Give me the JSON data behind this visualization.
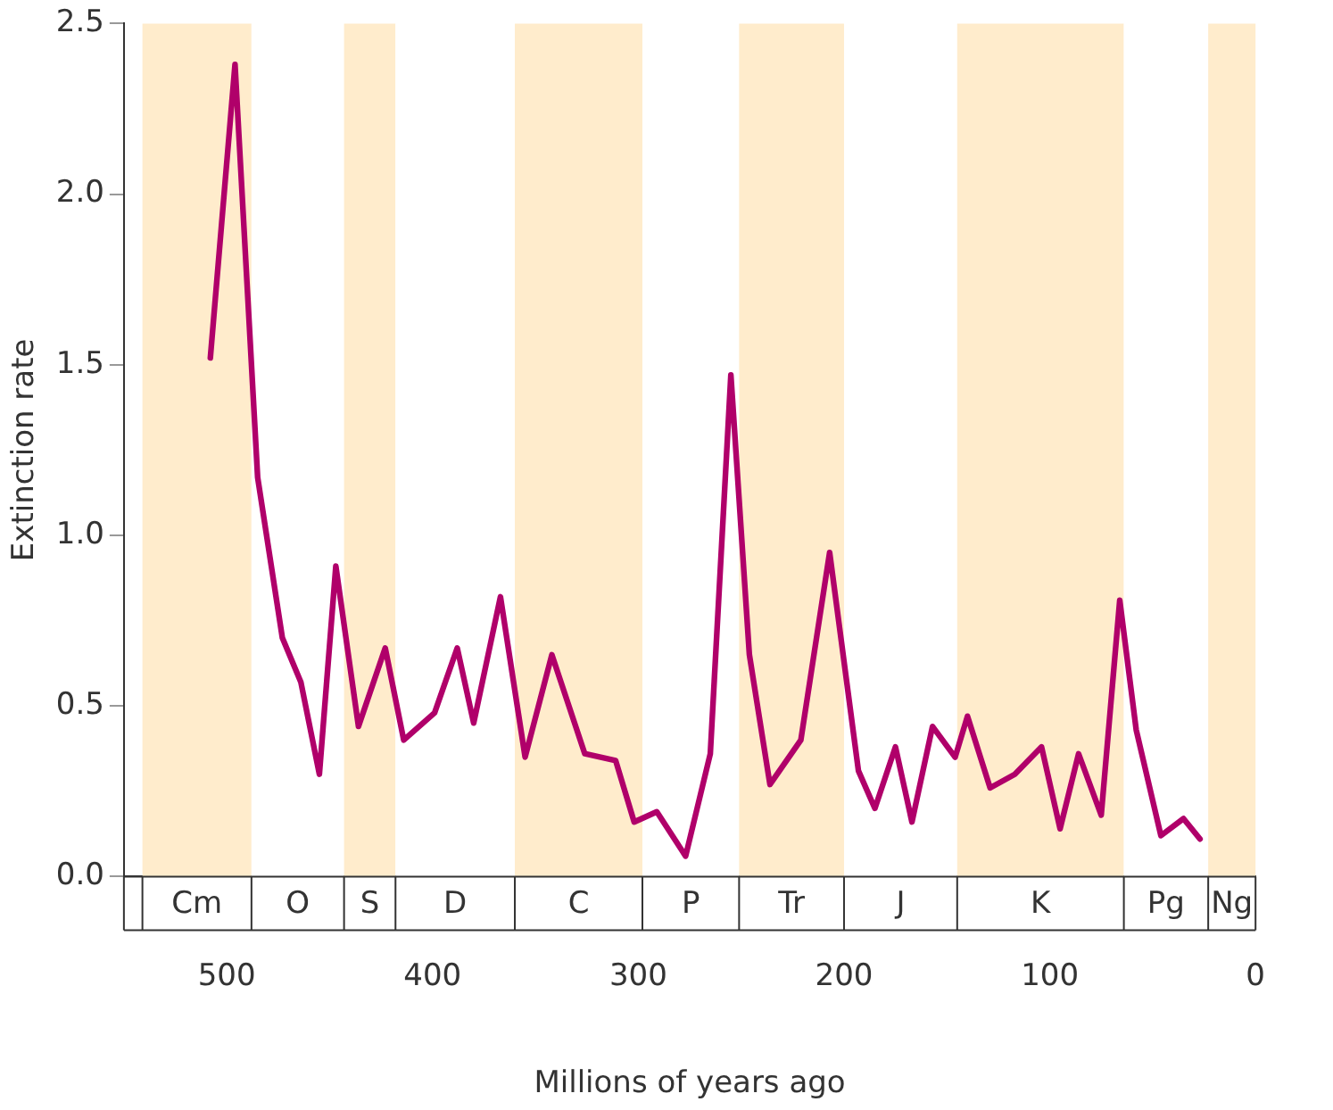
{
  "chart_data": {
    "type": "line",
    "xlabel": "Millions of years ago",
    "ylabel": "Extinction rate",
    "xlim": [
      550,
      0
    ],
    "xticks": [
      500,
      400,
      300,
      200,
      100,
      0
    ],
    "ylim": [
      0,
      2.5
    ],
    "yticks": [
      {
        "value": 0,
        "label": "0.0"
      },
      {
        "value": 0.5,
        "label": "0.5"
      },
      {
        "value": 1,
        "label": "1.0"
      },
      {
        "value": 1.5,
        "label": "1.5"
      },
      {
        "value": 2,
        "label": "2.0"
      },
      {
        "value": 2.5,
        "label": "2.5"
      }
    ],
    "grid": false,
    "legend": false,
    "series": [
      {
        "color": "#b0006a",
        "x": [
          508,
          496,
          485,
          473,
          464,
          455,
          447,
          436,
          423,
          414,
          399,
          388,
          380,
          367,
          355,
          342,
          326,
          311,
          302,
          291,
          277,
          265,
          255,
          246,
          236,
          221,
          207,
          193,
          185,
          175,
          167,
          157,
          146,
          140,
          129,
          117,
          104,
          95,
          86,
          75,
          66,
          58,
          46,
          35,
          27
        ],
        "values": [
          1.52,
          2.38,
          1.17,
          0.7,
          0.57,
          0.3,
          0.91,
          0.44,
          0.67,
          0.4,
          0.48,
          0.67,
          0.45,
          0.82,
          0.35,
          0.65,
          0.36,
          0.34,
          0.16,
          0.19,
          0.06,
          0.36,
          1.47,
          0.65,
          0.27,
          0.4,
          0.95,
          0.31,
          0.2,
          0.38,
          0.16,
          0.44,
          0.35,
          0.47,
          0.26,
          0.3,
          0.38,
          0.14,
          0.36,
          0.18,
          0.81,
          0.43,
          0.12,
          0.17,
          0.11
        ]
      }
    ],
    "bands": [
      {
        "axis": "x",
        "from": 541,
        "to": 488,
        "label": "Cm",
        "color": "#ffeccc"
      },
      {
        "axis": "x",
        "from": 488,
        "to": 443,
        "label": "O",
        "color": "#ffffff"
      },
      {
        "axis": "x",
        "from": 443,
        "to": 418,
        "label": "S",
        "color": "#ffeccc"
      },
      {
        "axis": "x",
        "from": 418,
        "to": 360,
        "label": "D",
        "color": "#ffffff"
      },
      {
        "axis": "x",
        "from": 360,
        "to": 298,
        "label": "C",
        "color": "#ffeccc"
      },
      {
        "axis": "x",
        "from": 298,
        "to": 251,
        "label": "P",
        "color": "#ffffff"
      },
      {
        "axis": "x",
        "from": 251,
        "to": 200,
        "label": "Tr",
        "color": "#ffeccc"
      },
      {
        "axis": "x",
        "from": 200,
        "to": 145,
        "label": "J",
        "color": "#ffffff"
      },
      {
        "axis": "x",
        "from": 145,
        "to": 64,
        "label": "K",
        "color": "#ffeccc"
      },
      {
        "axis": "x",
        "from": 64,
        "to": 23,
        "label": "Pg",
        "color": "#ffffff"
      },
      {
        "axis": "x",
        "from": 23,
        "to": 0,
        "label": "Ng",
        "color": "#ffeccc"
      }
    ]
  }
}
